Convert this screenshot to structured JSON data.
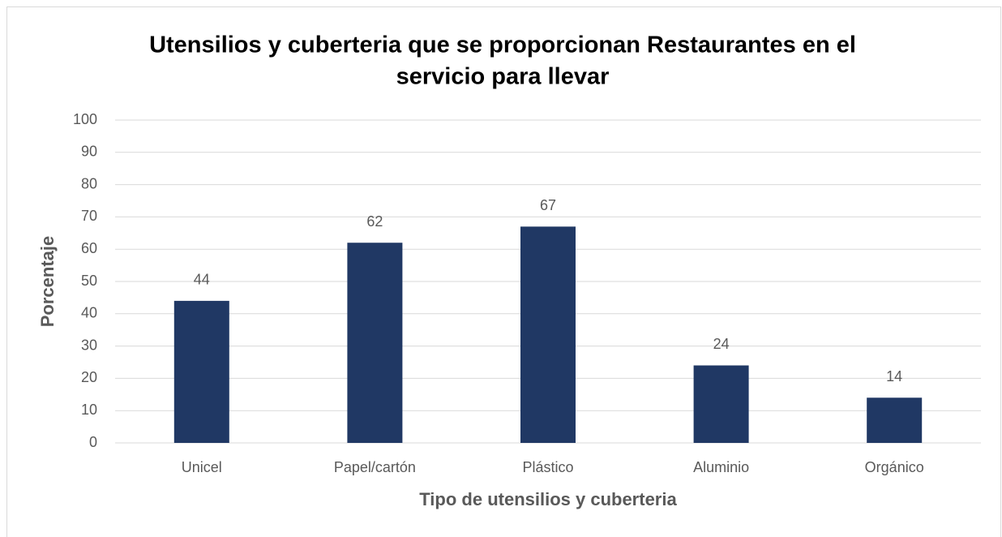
{
  "chart_data": {
    "type": "bar",
    "title": [
      "Utensilios y cuberteria que se proporcionan Restaurantes en el",
      "servicio para llevar"
    ],
    "x_label": "Tipo de utensilios y cuberteria",
    "y_label": "Porcentaje",
    "categories": [
      "Unicel",
      "Papel/cartón",
      "Plástico",
      "Aluminio",
      "Orgánico"
    ],
    "values": [
      44,
      62,
      67,
      24,
      14
    ],
    "color": "#203864",
    "ylim": [
      0,
      100
    ],
    "yticks": [
      0,
      10,
      20,
      30,
      40,
      50,
      60,
      70,
      80,
      90,
      100
    ],
    "grid": true
  }
}
